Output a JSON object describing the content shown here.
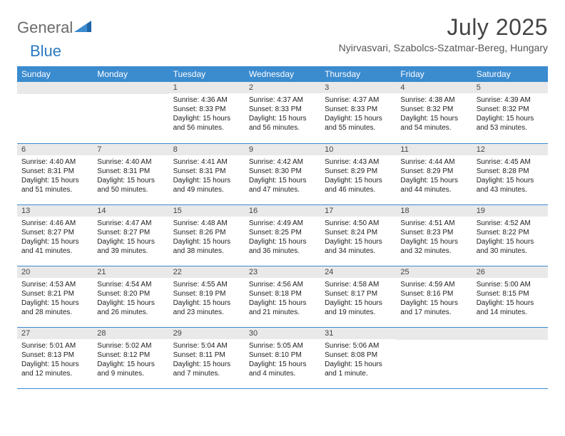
{
  "brand": {
    "part1": "General",
    "part2": "Blue"
  },
  "title": "July 2025",
  "location": "Nyirvasvari, Szabolcs-Szatmar-Bereg, Hungary",
  "day_headers": [
    "Sunday",
    "Monday",
    "Tuesday",
    "Wednesday",
    "Thursday",
    "Friday",
    "Saturday"
  ],
  "colors": {
    "header_bg": "#3b8bcf",
    "header_text": "#ffffff",
    "daynum_bg": "#e9e9e9",
    "row_border": "#3b8bcf",
    "title_color": "#444444",
    "body_text": "#222222",
    "logo_gray": "#6a6a6a",
    "logo_blue": "#2a7ac0"
  },
  "typography": {
    "title_fontsize": 32,
    "subtitle_fontsize": 14,
    "header_fontsize": 12,
    "cell_fontsize": 10
  },
  "weeks": [
    [
      {
        "empty": true
      },
      {
        "empty": true
      },
      {
        "num": "1",
        "sunrise": "Sunrise: 4:36 AM",
        "sunset": "Sunset: 8:33 PM",
        "daylight1": "Daylight: 15 hours",
        "daylight2": "and 56 minutes."
      },
      {
        "num": "2",
        "sunrise": "Sunrise: 4:37 AM",
        "sunset": "Sunset: 8:33 PM",
        "daylight1": "Daylight: 15 hours",
        "daylight2": "and 56 minutes."
      },
      {
        "num": "3",
        "sunrise": "Sunrise: 4:37 AM",
        "sunset": "Sunset: 8:33 PM",
        "daylight1": "Daylight: 15 hours",
        "daylight2": "and 55 minutes."
      },
      {
        "num": "4",
        "sunrise": "Sunrise: 4:38 AM",
        "sunset": "Sunset: 8:32 PM",
        "daylight1": "Daylight: 15 hours",
        "daylight2": "and 54 minutes."
      },
      {
        "num": "5",
        "sunrise": "Sunrise: 4:39 AM",
        "sunset": "Sunset: 8:32 PM",
        "daylight1": "Daylight: 15 hours",
        "daylight2": "and 53 minutes."
      }
    ],
    [
      {
        "num": "6",
        "sunrise": "Sunrise: 4:40 AM",
        "sunset": "Sunset: 8:31 PM",
        "daylight1": "Daylight: 15 hours",
        "daylight2": "and 51 minutes."
      },
      {
        "num": "7",
        "sunrise": "Sunrise: 4:40 AM",
        "sunset": "Sunset: 8:31 PM",
        "daylight1": "Daylight: 15 hours",
        "daylight2": "and 50 minutes."
      },
      {
        "num": "8",
        "sunrise": "Sunrise: 4:41 AM",
        "sunset": "Sunset: 8:31 PM",
        "daylight1": "Daylight: 15 hours",
        "daylight2": "and 49 minutes."
      },
      {
        "num": "9",
        "sunrise": "Sunrise: 4:42 AM",
        "sunset": "Sunset: 8:30 PM",
        "daylight1": "Daylight: 15 hours",
        "daylight2": "and 47 minutes."
      },
      {
        "num": "10",
        "sunrise": "Sunrise: 4:43 AM",
        "sunset": "Sunset: 8:29 PM",
        "daylight1": "Daylight: 15 hours",
        "daylight2": "and 46 minutes."
      },
      {
        "num": "11",
        "sunrise": "Sunrise: 4:44 AM",
        "sunset": "Sunset: 8:29 PM",
        "daylight1": "Daylight: 15 hours",
        "daylight2": "and 44 minutes."
      },
      {
        "num": "12",
        "sunrise": "Sunrise: 4:45 AM",
        "sunset": "Sunset: 8:28 PM",
        "daylight1": "Daylight: 15 hours",
        "daylight2": "and 43 minutes."
      }
    ],
    [
      {
        "num": "13",
        "sunrise": "Sunrise: 4:46 AM",
        "sunset": "Sunset: 8:27 PM",
        "daylight1": "Daylight: 15 hours",
        "daylight2": "and 41 minutes."
      },
      {
        "num": "14",
        "sunrise": "Sunrise: 4:47 AM",
        "sunset": "Sunset: 8:27 PM",
        "daylight1": "Daylight: 15 hours",
        "daylight2": "and 39 minutes."
      },
      {
        "num": "15",
        "sunrise": "Sunrise: 4:48 AM",
        "sunset": "Sunset: 8:26 PM",
        "daylight1": "Daylight: 15 hours",
        "daylight2": "and 38 minutes."
      },
      {
        "num": "16",
        "sunrise": "Sunrise: 4:49 AM",
        "sunset": "Sunset: 8:25 PM",
        "daylight1": "Daylight: 15 hours",
        "daylight2": "and 36 minutes."
      },
      {
        "num": "17",
        "sunrise": "Sunrise: 4:50 AM",
        "sunset": "Sunset: 8:24 PM",
        "daylight1": "Daylight: 15 hours",
        "daylight2": "and 34 minutes."
      },
      {
        "num": "18",
        "sunrise": "Sunrise: 4:51 AM",
        "sunset": "Sunset: 8:23 PM",
        "daylight1": "Daylight: 15 hours",
        "daylight2": "and 32 minutes."
      },
      {
        "num": "19",
        "sunrise": "Sunrise: 4:52 AM",
        "sunset": "Sunset: 8:22 PM",
        "daylight1": "Daylight: 15 hours",
        "daylight2": "and 30 minutes."
      }
    ],
    [
      {
        "num": "20",
        "sunrise": "Sunrise: 4:53 AM",
        "sunset": "Sunset: 8:21 PM",
        "daylight1": "Daylight: 15 hours",
        "daylight2": "and 28 minutes."
      },
      {
        "num": "21",
        "sunrise": "Sunrise: 4:54 AM",
        "sunset": "Sunset: 8:20 PM",
        "daylight1": "Daylight: 15 hours",
        "daylight2": "and 26 minutes."
      },
      {
        "num": "22",
        "sunrise": "Sunrise: 4:55 AM",
        "sunset": "Sunset: 8:19 PM",
        "daylight1": "Daylight: 15 hours",
        "daylight2": "and 23 minutes."
      },
      {
        "num": "23",
        "sunrise": "Sunrise: 4:56 AM",
        "sunset": "Sunset: 8:18 PM",
        "daylight1": "Daylight: 15 hours",
        "daylight2": "and 21 minutes."
      },
      {
        "num": "24",
        "sunrise": "Sunrise: 4:58 AM",
        "sunset": "Sunset: 8:17 PM",
        "daylight1": "Daylight: 15 hours",
        "daylight2": "and 19 minutes."
      },
      {
        "num": "25",
        "sunrise": "Sunrise: 4:59 AM",
        "sunset": "Sunset: 8:16 PM",
        "daylight1": "Daylight: 15 hours",
        "daylight2": "and 17 minutes."
      },
      {
        "num": "26",
        "sunrise": "Sunrise: 5:00 AM",
        "sunset": "Sunset: 8:15 PM",
        "daylight1": "Daylight: 15 hours",
        "daylight2": "and 14 minutes."
      }
    ],
    [
      {
        "num": "27",
        "sunrise": "Sunrise: 5:01 AM",
        "sunset": "Sunset: 8:13 PM",
        "daylight1": "Daylight: 15 hours",
        "daylight2": "and 12 minutes."
      },
      {
        "num": "28",
        "sunrise": "Sunrise: 5:02 AM",
        "sunset": "Sunset: 8:12 PM",
        "daylight1": "Daylight: 15 hours",
        "daylight2": "and 9 minutes."
      },
      {
        "num": "29",
        "sunrise": "Sunrise: 5:04 AM",
        "sunset": "Sunset: 8:11 PM",
        "daylight1": "Daylight: 15 hours",
        "daylight2": "and 7 minutes."
      },
      {
        "num": "30",
        "sunrise": "Sunrise: 5:05 AM",
        "sunset": "Sunset: 8:10 PM",
        "daylight1": "Daylight: 15 hours",
        "daylight2": "and 4 minutes."
      },
      {
        "num": "31",
        "sunrise": "Sunrise: 5:06 AM",
        "sunset": "Sunset: 8:08 PM",
        "daylight1": "Daylight: 15 hours",
        "daylight2": "and 1 minute."
      },
      {
        "empty": true
      },
      {
        "empty": true
      }
    ]
  ]
}
